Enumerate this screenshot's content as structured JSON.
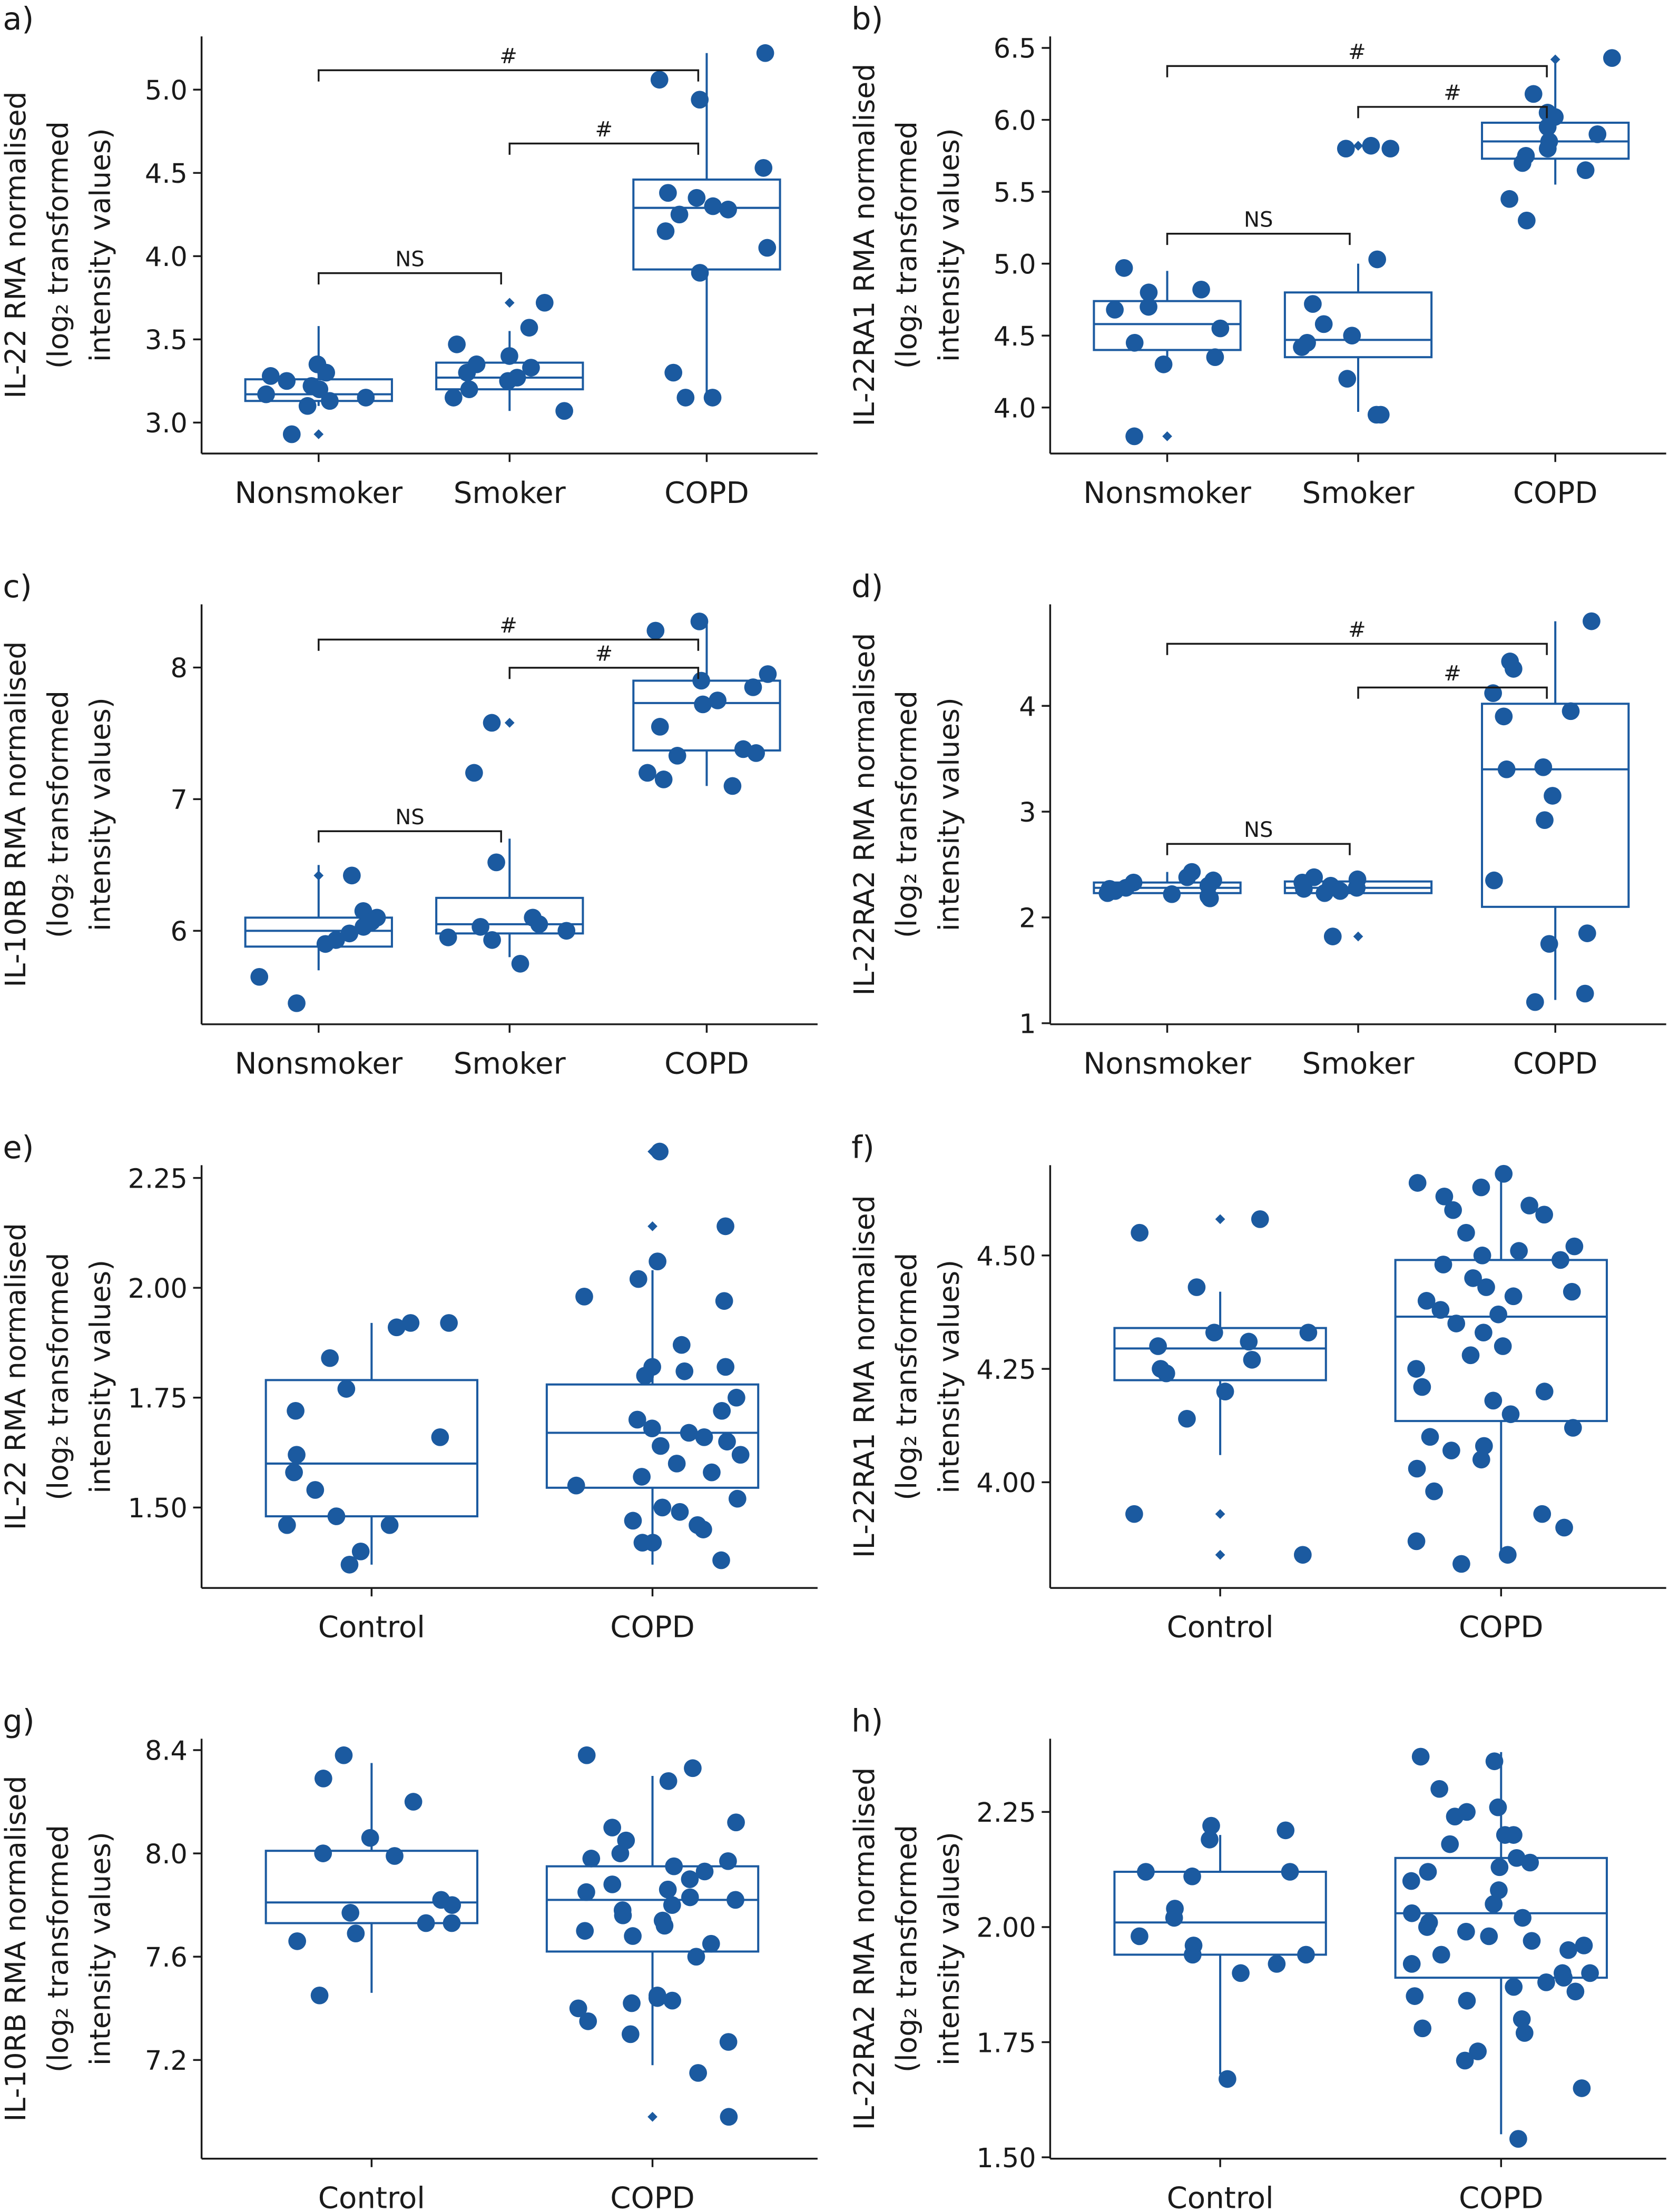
{
  "colors": {
    "marker": "#1b5aa0",
    "axis": "#1a1a1a"
  },
  "chart_data": [
    {
      "panel": "a)",
      "type": "box",
      "ylabel": [
        "IL-22 RMA normalised",
        "(log₂ transformed",
        "intensity values)"
      ],
      "ylim": [
        2.814,
        5.32
      ],
      "yticks": [
        3.0,
        3.5,
        4.0,
        4.5,
        5.0
      ],
      "tick_labels": [
        "3.0",
        "3.5",
        "4.0",
        "4.5",
        "5.0"
      ],
      "categories": [
        "Nonsmoker",
        "Smoker",
        "COPD"
      ],
      "groups": [
        {
          "name": "Nonsmoker",
          "box": {
            "q1": 3.13,
            "median": 3.17,
            "q3": 3.26,
            "whisker_low": 3.1,
            "whisker_high": 3.58
          },
          "outliers": [
            2.93
          ],
          "points": [
            3.35,
            3.3,
            3.28,
            3.25,
            3.22,
            3.2,
            3.17,
            3.15,
            3.13,
            3.1,
            2.93
          ]
        },
        {
          "name": "Smoker",
          "box": {
            "q1": 3.2,
            "median": 3.27,
            "q3": 3.36,
            "whisker_low": 3.07,
            "whisker_high": 3.55
          },
          "outliers": [
            3.72
          ],
          "points": [
            3.72,
            3.57,
            3.47,
            3.4,
            3.35,
            3.33,
            3.3,
            3.27,
            3.25,
            3.2,
            3.15,
            3.07
          ]
        },
        {
          "name": "COPD",
          "box": {
            "q1": 3.92,
            "median": 4.29,
            "q3": 4.46,
            "whisker_low": 3.15,
            "whisker_high": 5.22
          },
          "outliers": [],
          "points": [
            5.22,
            5.06,
            4.94,
            4.53,
            4.38,
            4.35,
            4.3,
            4.28,
            4.25,
            4.15,
            4.05,
            3.9,
            3.3,
            3.15,
            3.15
          ]
        }
      ],
      "comparisons": [
        {
          "from": 0,
          "to": 2,
          "label": "#"
        },
        {
          "from": 1,
          "to": 2,
          "label": "#"
        },
        {
          "from": 0,
          "to": 1,
          "label": "NS"
        }
      ]
    },
    {
      "panel": "b)",
      "type": "box",
      "ylabel": [
        "IL-22RA1 RMA normalised",
        "(log₂ transformed",
        "intensity values)"
      ],
      "ylim": [
        3.68,
        6.58
      ],
      "yticks": [
        4.0,
        4.5,
        5.0,
        5.5,
        6.0,
        6.5
      ],
      "tick_labels": [
        "4.0",
        "4.5",
        "5.0",
        "5.5",
        "6.0",
        "6.5"
      ],
      "categories": [
        "Nonsmoker",
        "Smoker",
        "COPD"
      ],
      "groups": [
        {
          "name": "Nonsmoker",
          "box": {
            "q1": 4.4,
            "median": 4.58,
            "q3": 4.74,
            "whisker_low": 4.3,
            "whisker_high": 4.95
          },
          "outliers": [
            3.8
          ],
          "points": [
            4.97,
            4.82,
            4.8,
            4.7,
            4.68,
            4.55,
            4.45,
            4.35,
            4.3,
            3.8
          ]
        },
        {
          "name": "Smoker",
          "box": {
            "q1": 4.35,
            "median": 4.47,
            "q3": 4.8,
            "whisker_low": 3.97,
            "whisker_high": 5.0
          },
          "outliers": [
            5.82
          ],
          "points": [
            5.82,
            5.8,
            5.8,
            5.03,
            4.72,
            4.58,
            4.5,
            4.45,
            4.42,
            4.2,
            3.95,
            3.95
          ]
        },
        {
          "name": "COPD",
          "box": {
            "q1": 5.73,
            "median": 5.85,
            "q3": 5.98,
            "whisker_low": 5.55,
            "whisker_high": 6.42
          },
          "outliers": [
            6.42
          ],
          "points": [
            6.43,
            6.18,
            6.05,
            6.02,
            5.95,
            5.9,
            5.85,
            5.8,
            5.75,
            5.7,
            5.65,
            5.45,
            5.3
          ]
        }
      ],
      "comparisons": [
        {
          "from": 0,
          "to": 2,
          "label": "#"
        },
        {
          "from": 1,
          "to": 2,
          "label": "#"
        },
        {
          "from": 0,
          "to": 1,
          "label": "NS"
        }
      ]
    },
    {
      "panel": "c)",
      "type": "box",
      "ylabel": [
        "IL-10RB RMA normalised",
        "(log₂ transformed",
        "intensity values)"
      ],
      "ylim": [
        5.29,
        8.48
      ],
      "yticks": [
        6,
        7,
        8
      ],
      "tick_labels": [
        "6",
        "7",
        "8"
      ],
      "categories": [
        "Nonsmoker",
        "Smoker",
        "COPD"
      ],
      "groups": [
        {
          "name": "Nonsmoker",
          "box": {
            "q1": 5.88,
            "median": 6.0,
            "q3": 6.1,
            "whisker_low": 5.7,
            "whisker_high": 6.5
          },
          "outliers": [
            6.42
          ],
          "points": [
            6.42,
            6.15,
            6.1,
            6.07,
            6.03,
            5.98,
            5.93,
            5.9,
            5.65,
            5.45
          ]
        },
        {
          "name": "Smoker",
          "box": {
            "q1": 5.98,
            "median": 6.05,
            "q3": 6.25,
            "whisker_low": 5.8,
            "whisker_high": 6.7
          },
          "outliers": [
            7.58
          ],
          "points": [
            7.58,
            7.2,
            6.52,
            6.1,
            6.05,
            6.03,
            6.0,
            5.95,
            5.93,
            5.75
          ]
        },
        {
          "name": "COPD",
          "box": {
            "q1": 7.37,
            "median": 7.73,
            "q3": 7.9,
            "whisker_low": 7.1,
            "whisker_high": 8.35
          },
          "outliers": [],
          "points": [
            8.35,
            8.28,
            7.95,
            7.9,
            7.85,
            7.75,
            7.72,
            7.55,
            7.38,
            7.35,
            7.33,
            7.2,
            7.15,
            7.1
          ]
        }
      ],
      "comparisons": [
        {
          "from": 0,
          "to": 2,
          "label": "#"
        },
        {
          "from": 1,
          "to": 2,
          "label": "#"
        },
        {
          "from": 0,
          "to": 1,
          "label": "NS"
        }
      ]
    },
    {
      "panel": "d)",
      "type": "box",
      "ylabel": [
        "IL-22RA2 RMA normalised",
        "(log₂ transformed",
        "intensity values)"
      ],
      "ylim": [
        0.99,
        4.96
      ],
      "yticks": [
        1,
        2,
        3,
        4
      ],
      "tick_labels": [
        "1",
        "2",
        "3",
        "4"
      ],
      "categories": [
        "Nonsmoker",
        "Smoker",
        "COPD"
      ],
      "groups": [
        {
          "name": "Nonsmoker",
          "box": {
            "q1": 2.23,
            "median": 2.28,
            "q3": 2.33,
            "whisker_low": 2.18,
            "whisker_high": 2.43
          },
          "outliers": [],
          "points": [
            2.43,
            2.38,
            2.35,
            2.33,
            2.3,
            2.28,
            2.27,
            2.25,
            2.23,
            2.22,
            2.2,
            2.18
          ]
        },
        {
          "name": "Smoker",
          "box": {
            "q1": 2.23,
            "median": 2.28,
            "q3": 2.34,
            "whisker_low": 2.2,
            "whisker_high": 2.38
          },
          "outliers": [
            1.82
          ],
          "points": [
            2.38,
            2.36,
            2.33,
            2.3,
            2.28,
            2.27,
            2.25,
            2.23,
            1.82
          ]
        },
        {
          "name": "COPD",
          "box": {
            "q1": 2.1,
            "median": 3.4,
            "q3": 4.02,
            "whisker_low": 1.22,
            "whisker_high": 4.8
          },
          "outliers": [],
          "points": [
            4.8,
            4.42,
            4.35,
            4.12,
            3.95,
            3.9,
            3.42,
            3.4,
            3.15,
            2.92,
            2.35,
            1.85,
            1.75,
            1.28,
            1.2
          ]
        }
      ],
      "comparisons": [
        {
          "from": 0,
          "to": 2,
          "label": "#"
        },
        {
          "from": 1,
          "to": 2,
          "label": "#"
        },
        {
          "from": 0,
          "to": 1,
          "label": "NS"
        }
      ]
    },
    {
      "panel": "e)",
      "type": "box",
      "ylabel": [
        "IL-22 RMA normalised",
        "(log₂ transformed",
        "intensity values)"
      ],
      "ylim": [
        1.317,
        2.279
      ],
      "yticks": [
        1.5,
        1.75,
        2.0,
        2.25
      ],
      "tick_labels": [
        "1.50",
        "1.75",
        "2.00",
        "2.25"
      ],
      "categories": [
        "Control",
        "COPD"
      ],
      "groups": [
        {
          "name": "Control",
          "box": {
            "q1": 1.48,
            "median": 1.6,
            "q3": 1.79,
            "whisker_low": 1.37,
            "whisker_high": 1.92
          },
          "outliers": [],
          "points": [
            1.92,
            1.92,
            1.91,
            1.84,
            1.77,
            1.72,
            1.66,
            1.62,
            1.58,
            1.54,
            1.48,
            1.46,
            1.46,
            1.4,
            1.37
          ]
        },
        {
          "name": "COPD",
          "box": {
            "q1": 1.545,
            "median": 1.67,
            "q3": 1.78,
            "whisker_low": 1.37,
            "whisker_high": 2.04
          },
          "outliers": [
            2.31,
            2.14
          ],
          "points": [
            2.31,
            2.14,
            2.06,
            2.02,
            1.98,
            1.97,
            1.87,
            1.82,
            1.82,
            1.81,
            1.8,
            1.75,
            1.72,
            1.7,
            1.68,
            1.67,
            1.66,
            1.65,
            1.64,
            1.62,
            1.6,
            1.58,
            1.57,
            1.55,
            1.52,
            1.5,
            1.49,
            1.47,
            1.46,
            1.45,
            1.42,
            1.42,
            1.38
          ]
        }
      ],
      "comparisons": []
    },
    {
      "panel": "f)",
      "type": "box",
      "ylabel": [
        "IL-22RA1 RMA normalised",
        "(log₂ transformed",
        "intensity values)"
      ],
      "ylim": [
        3.767,
        4.699
      ],
      "yticks": [
        4.0,
        4.25,
        4.5
      ],
      "tick_labels": [
        "4.00",
        "4.25",
        "4.50"
      ],
      "categories": [
        "Control",
        "COPD"
      ],
      "groups": [
        {
          "name": "Control",
          "box": {
            "q1": 4.225,
            "median": 4.295,
            "q3": 4.34,
            "whisker_low": 4.06,
            "whisker_high": 4.42
          },
          "outliers": [
            4.58,
            3.93,
            3.84
          ],
          "points": [
            4.58,
            4.55,
            4.43,
            4.33,
            4.33,
            4.31,
            4.3,
            4.27,
            4.25,
            4.24,
            4.2,
            4.14,
            3.93,
            3.84
          ]
        },
        {
          "name": "COPD",
          "box": {
            "q1": 4.135,
            "median": 4.365,
            "q3": 4.49,
            "whisker_low": 3.83,
            "whisker_high": 4.67
          },
          "outliers": [],
          "points": [
            4.68,
            4.66,
            4.65,
            4.63,
            4.61,
            4.6,
            4.59,
            4.55,
            4.52,
            4.51,
            4.5,
            4.49,
            4.48,
            4.45,
            4.43,
            4.42,
            4.41,
            4.4,
            4.38,
            4.37,
            4.35,
            4.33,
            4.3,
            4.28,
            4.25,
            4.21,
            4.2,
            4.18,
            4.15,
            4.12,
            4.1,
            4.08,
            4.07,
            4.05,
            4.03,
            3.98,
            3.93,
            3.9,
            3.87,
            3.84,
            3.82
          ]
        }
      ],
      "comparisons": []
    },
    {
      "panel": "g)",
      "type": "box",
      "ylabel": [
        "IL-10RB RMA normalised",
        "(log₂ transformed",
        "intensity values)"
      ],
      "ylim": [
        6.818,
        8.444
      ],
      "yticks": [
        7.2,
        7.6,
        8.0,
        8.4
      ],
      "tick_labels": [
        "7.2",
        "7.6",
        "8.0",
        "8.4"
      ],
      "categories": [
        "Control",
        "COPD"
      ],
      "groups": [
        {
          "name": "Control",
          "box": {
            "q1": 7.73,
            "median": 7.81,
            "q3": 8.01,
            "whisker_low": 7.46,
            "whisker_high": 8.35
          },
          "outliers": [],
          "points": [
            8.38,
            8.29,
            8.2,
            8.06,
            8.0,
            7.99,
            7.82,
            7.8,
            7.77,
            7.73,
            7.73,
            7.69,
            7.66,
            7.45
          ]
        },
        {
          "name": "COPD",
          "box": {
            "q1": 7.62,
            "median": 7.82,
            "q3": 7.95,
            "whisker_low": 7.18,
            "whisker_high": 8.3
          },
          "outliers": [
            6.98
          ],
          "points": [
            8.38,
            8.33,
            8.28,
            8.12,
            8.1,
            8.05,
            8.0,
            7.98,
            7.97,
            7.95,
            7.93,
            7.9,
            7.88,
            7.86,
            7.85,
            7.83,
            7.82,
            7.8,
            7.78,
            7.76,
            7.74,
            7.72,
            7.7,
            7.68,
            7.65,
            7.6,
            7.45,
            7.44,
            7.43,
            7.42,
            7.4,
            7.35,
            7.3,
            7.27,
            7.15,
            6.98
          ]
        }
      ],
      "comparisons": []
    },
    {
      "panel": "h)",
      "type": "box",
      "ylabel": [
        "IL-22RA2 RMA normalised",
        "(log₂ transformed",
        "intensity values)"
      ],
      "ylim": [
        1.497,
        2.409
      ],
      "yticks": [
        1.5,
        1.75,
        2.0,
        2.25
      ],
      "tick_labels": [
        "1.50",
        "1.75",
        "2.00",
        "2.25"
      ],
      "categories": [
        "Control",
        "COPD"
      ],
      "groups": [
        {
          "name": "Control",
          "box": {
            "q1": 1.94,
            "median": 2.01,
            "q3": 2.12,
            "whisker_low": 1.68,
            "whisker_high": 2.2
          },
          "outliers": [],
          "points": [
            2.22,
            2.21,
            2.19,
            2.12,
            2.12,
            2.11,
            2.04,
            2.02,
            1.98,
            1.96,
            1.94,
            1.94,
            1.92,
            1.9,
            1.67
          ]
        },
        {
          "name": "COPD",
          "box": {
            "q1": 1.89,
            "median": 2.03,
            "q3": 2.15,
            "whisker_low": 1.55,
            "whisker_high": 2.38
          },
          "outliers": [],
          "points": [
            2.37,
            2.36,
            2.3,
            2.26,
            2.25,
            2.24,
            2.2,
            2.2,
            2.18,
            2.15,
            2.14,
            2.13,
            2.12,
            2.1,
            2.08,
            2.05,
            2.03,
            2.02,
            2.01,
            2.0,
            1.99,
            1.98,
            1.97,
            1.96,
            1.95,
            1.94,
            1.92,
            1.9,
            1.9,
            1.89,
            1.88,
            1.87,
            1.86,
            1.85,
            1.84,
            1.8,
            1.78,
            1.77,
            1.73,
            1.71,
            1.65,
            1.54
          ]
        }
      ],
      "comparisons": []
    }
  ]
}
